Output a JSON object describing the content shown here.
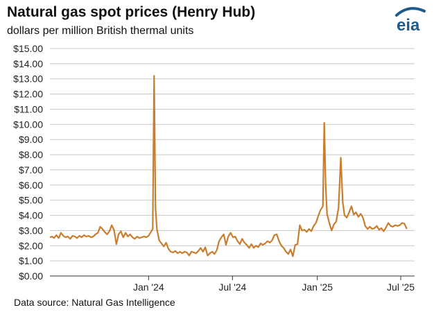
{
  "header": {
    "title": "Natural gas spot prices (Henry Hub)",
    "subtitle": "dollars per million British thermal units",
    "logo_text": "eia"
  },
  "footer": {
    "source": "Data source: Natural Gas Intelligence"
  },
  "colors": {
    "line": "#c97d2e",
    "grid": "#c8c8c8",
    "axis": "#333333",
    "logo": "#1f5c8c"
  },
  "chart_data": {
    "type": "line",
    "title": "Natural gas spot prices (Henry Hub)",
    "subtitle": "dollars per million British thermal units",
    "xlabel": "",
    "ylabel": "",
    "ylim": [
      0,
      15
    ],
    "xlim": [
      "2023-06-01",
      "2025-07-31"
    ],
    "grid": true,
    "legend": "none",
    "yticks": [
      "$0.00",
      "$1.00",
      "$2.00",
      "$3.00",
      "$4.00",
      "$5.00",
      "$6.00",
      "$7.00",
      "$8.00",
      "$9.00",
      "$10.00",
      "$11.00",
      "$12.00",
      "$13.00",
      "$14.00",
      "$15.00"
    ],
    "xticks": [
      {
        "label": "Jan '24",
        "date": "2024-01-01"
      },
      {
        "label": "Jul '24",
        "date": "2024-07-01"
      },
      {
        "label": "Jan '25",
        "date": "2025-01-01"
      },
      {
        "label": "Jul '25",
        "date": "2025-07-01"
      }
    ],
    "series": [
      {
        "name": "",
        "points": [
          [
            "2023-06-01",
            2.55
          ],
          [
            "2023-06-06",
            2.6
          ],
          [
            "2023-06-10",
            2.5
          ],
          [
            "2023-06-15",
            2.7
          ],
          [
            "2023-06-20",
            2.5
          ],
          [
            "2023-06-25",
            2.85
          ],
          [
            "2023-06-30",
            2.65
          ],
          [
            "2023-07-05",
            2.55
          ],
          [
            "2023-07-10",
            2.6
          ],
          [
            "2023-07-15",
            2.45
          ],
          [
            "2023-07-20",
            2.65
          ],
          [
            "2023-07-25",
            2.6
          ],
          [
            "2023-07-30",
            2.5
          ],
          [
            "2023-08-04",
            2.65
          ],
          [
            "2023-08-09",
            2.55
          ],
          [
            "2023-08-14",
            2.7
          ],
          [
            "2023-08-19",
            2.6
          ],
          [
            "2023-08-24",
            2.65
          ],
          [
            "2023-08-29",
            2.55
          ],
          [
            "2023-09-03",
            2.6
          ],
          [
            "2023-09-08",
            2.75
          ],
          [
            "2023-09-13",
            2.85
          ],
          [
            "2023-09-18",
            3.25
          ],
          [
            "2023-09-23",
            3.1
          ],
          [
            "2023-09-28",
            2.9
          ],
          [
            "2023-10-03",
            2.75
          ],
          [
            "2023-10-08",
            2.95
          ],
          [
            "2023-10-13",
            3.35
          ],
          [
            "2023-10-18",
            3.05
          ],
          [
            "2023-10-23",
            2.1
          ],
          [
            "2023-10-28",
            2.75
          ],
          [
            "2023-11-02",
            2.95
          ],
          [
            "2023-11-07",
            2.55
          ],
          [
            "2023-11-12",
            2.85
          ],
          [
            "2023-11-17",
            2.6
          ],
          [
            "2023-11-22",
            2.75
          ],
          [
            "2023-11-27",
            2.55
          ],
          [
            "2023-12-02",
            2.45
          ],
          [
            "2023-12-07",
            2.6
          ],
          [
            "2023-12-12",
            2.5
          ],
          [
            "2023-12-17",
            2.55
          ],
          [
            "2023-12-22",
            2.6
          ],
          [
            "2023-12-27",
            2.55
          ],
          [
            "2024-01-01",
            2.65
          ],
          [
            "2024-01-06",
            2.9
          ],
          [
            "2024-01-10",
            3.1
          ],
          [
            "2024-01-13",
            13.2
          ],
          [
            "2024-01-16",
            4.5
          ],
          [
            "2024-01-19",
            3.1
          ],
          [
            "2024-01-24",
            2.35
          ],
          [
            "2024-01-29",
            2.15
          ],
          [
            "2024-02-03",
            1.95
          ],
          [
            "2024-02-08",
            2.2
          ],
          [
            "2024-02-13",
            1.8
          ],
          [
            "2024-02-18",
            1.6
          ],
          [
            "2024-02-23",
            1.55
          ],
          [
            "2024-02-28",
            1.65
          ],
          [
            "2024-03-04",
            1.5
          ],
          [
            "2024-03-09",
            1.6
          ],
          [
            "2024-03-14",
            1.5
          ],
          [
            "2024-03-19",
            1.6
          ],
          [
            "2024-03-24",
            1.55
          ],
          [
            "2024-03-29",
            1.35
          ],
          [
            "2024-04-03",
            1.6
          ],
          [
            "2024-04-08",
            1.55
          ],
          [
            "2024-04-13",
            1.5
          ],
          [
            "2024-04-18",
            1.65
          ],
          [
            "2024-04-23",
            1.85
          ],
          [
            "2024-04-28",
            1.6
          ],
          [
            "2024-05-03",
            1.9
          ],
          [
            "2024-05-08",
            1.35
          ],
          [
            "2024-05-13",
            1.5
          ],
          [
            "2024-05-18",
            1.6
          ],
          [
            "2024-05-23",
            1.45
          ],
          [
            "2024-05-28",
            1.7
          ],
          [
            "2024-06-02",
            2.3
          ],
          [
            "2024-06-07",
            2.55
          ],
          [
            "2024-06-12",
            2.75
          ],
          [
            "2024-06-17",
            2.05
          ],
          [
            "2024-06-22",
            2.6
          ],
          [
            "2024-06-27",
            2.85
          ],
          [
            "2024-07-02",
            2.55
          ],
          [
            "2024-07-07",
            2.6
          ],
          [
            "2024-07-12",
            2.3
          ],
          [
            "2024-07-17",
            2.1
          ],
          [
            "2024-07-22",
            2.45
          ],
          [
            "2024-07-27",
            2.2
          ],
          [
            "2024-08-01",
            2.05
          ],
          [
            "2024-08-06",
            1.85
          ],
          [
            "2024-08-11",
            2.1
          ],
          [
            "2024-08-16",
            1.85
          ],
          [
            "2024-08-21",
            2.0
          ],
          [
            "2024-08-26",
            1.9
          ],
          [
            "2024-08-31",
            2.15
          ],
          [
            "2024-09-05",
            2.05
          ],
          [
            "2024-09-10",
            2.15
          ],
          [
            "2024-09-15",
            2.3
          ],
          [
            "2024-09-20",
            2.2
          ],
          [
            "2024-09-25",
            2.35
          ],
          [
            "2024-09-30",
            2.7
          ],
          [
            "2024-10-05",
            2.75
          ],
          [
            "2024-10-10",
            2.3
          ],
          [
            "2024-10-15",
            2.0
          ],
          [
            "2024-10-20",
            1.85
          ],
          [
            "2024-10-25",
            1.6
          ],
          [
            "2024-10-30",
            1.45
          ],
          [
            "2024-11-04",
            1.75
          ],
          [
            "2024-11-09",
            1.3
          ],
          [
            "2024-11-14",
            2.05
          ],
          [
            "2024-11-19",
            2.1
          ],
          [
            "2024-11-24",
            3.35
          ],
          [
            "2024-11-29",
            3.0
          ],
          [
            "2024-12-04",
            3.05
          ],
          [
            "2024-12-09",
            2.9
          ],
          [
            "2024-12-14",
            3.1
          ],
          [
            "2024-12-19",
            2.95
          ],
          [
            "2024-12-24",
            3.3
          ],
          [
            "2024-12-29",
            3.5
          ],
          [
            "2025-01-03",
            3.95
          ],
          [
            "2025-01-08",
            4.35
          ],
          [
            "2025-01-13",
            4.6
          ],
          [
            "2025-01-16",
            10.1
          ],
          [
            "2025-01-19",
            6.0
          ],
          [
            "2025-01-22",
            4.1
          ],
          [
            "2025-01-27",
            3.5
          ],
          [
            "2025-02-01",
            3.0
          ],
          [
            "2025-02-06",
            3.4
          ],
          [
            "2025-02-11",
            3.6
          ],
          [
            "2025-02-16",
            4.5
          ],
          [
            "2025-02-21",
            7.8
          ],
          [
            "2025-02-25",
            4.9
          ],
          [
            "2025-03-01",
            4.0
          ],
          [
            "2025-03-06",
            3.85
          ],
          [
            "2025-03-11",
            4.2
          ],
          [
            "2025-03-16",
            4.6
          ],
          [
            "2025-03-21",
            4.05
          ],
          [
            "2025-03-26",
            4.2
          ],
          [
            "2025-03-31",
            3.9
          ],
          [
            "2025-04-05",
            4.1
          ],
          [
            "2025-04-10",
            3.85
          ],
          [
            "2025-04-15",
            3.3
          ],
          [
            "2025-04-20",
            3.1
          ],
          [
            "2025-04-25",
            3.25
          ],
          [
            "2025-04-30",
            3.1
          ],
          [
            "2025-05-05",
            3.15
          ],
          [
            "2025-05-10",
            3.3
          ],
          [
            "2025-05-15",
            3.05
          ],
          [
            "2025-05-20",
            3.15
          ],
          [
            "2025-05-25",
            2.95
          ],
          [
            "2025-05-30",
            3.2
          ],
          [
            "2025-06-04",
            3.5
          ],
          [
            "2025-06-09",
            3.3
          ],
          [
            "2025-06-14",
            3.25
          ],
          [
            "2025-06-19",
            3.35
          ],
          [
            "2025-06-24",
            3.3
          ],
          [
            "2025-06-29",
            3.35
          ],
          [
            "2025-07-04",
            3.5
          ],
          [
            "2025-07-09",
            3.45
          ],
          [
            "2025-07-14",
            3.1
          ]
        ]
      }
    ]
  }
}
